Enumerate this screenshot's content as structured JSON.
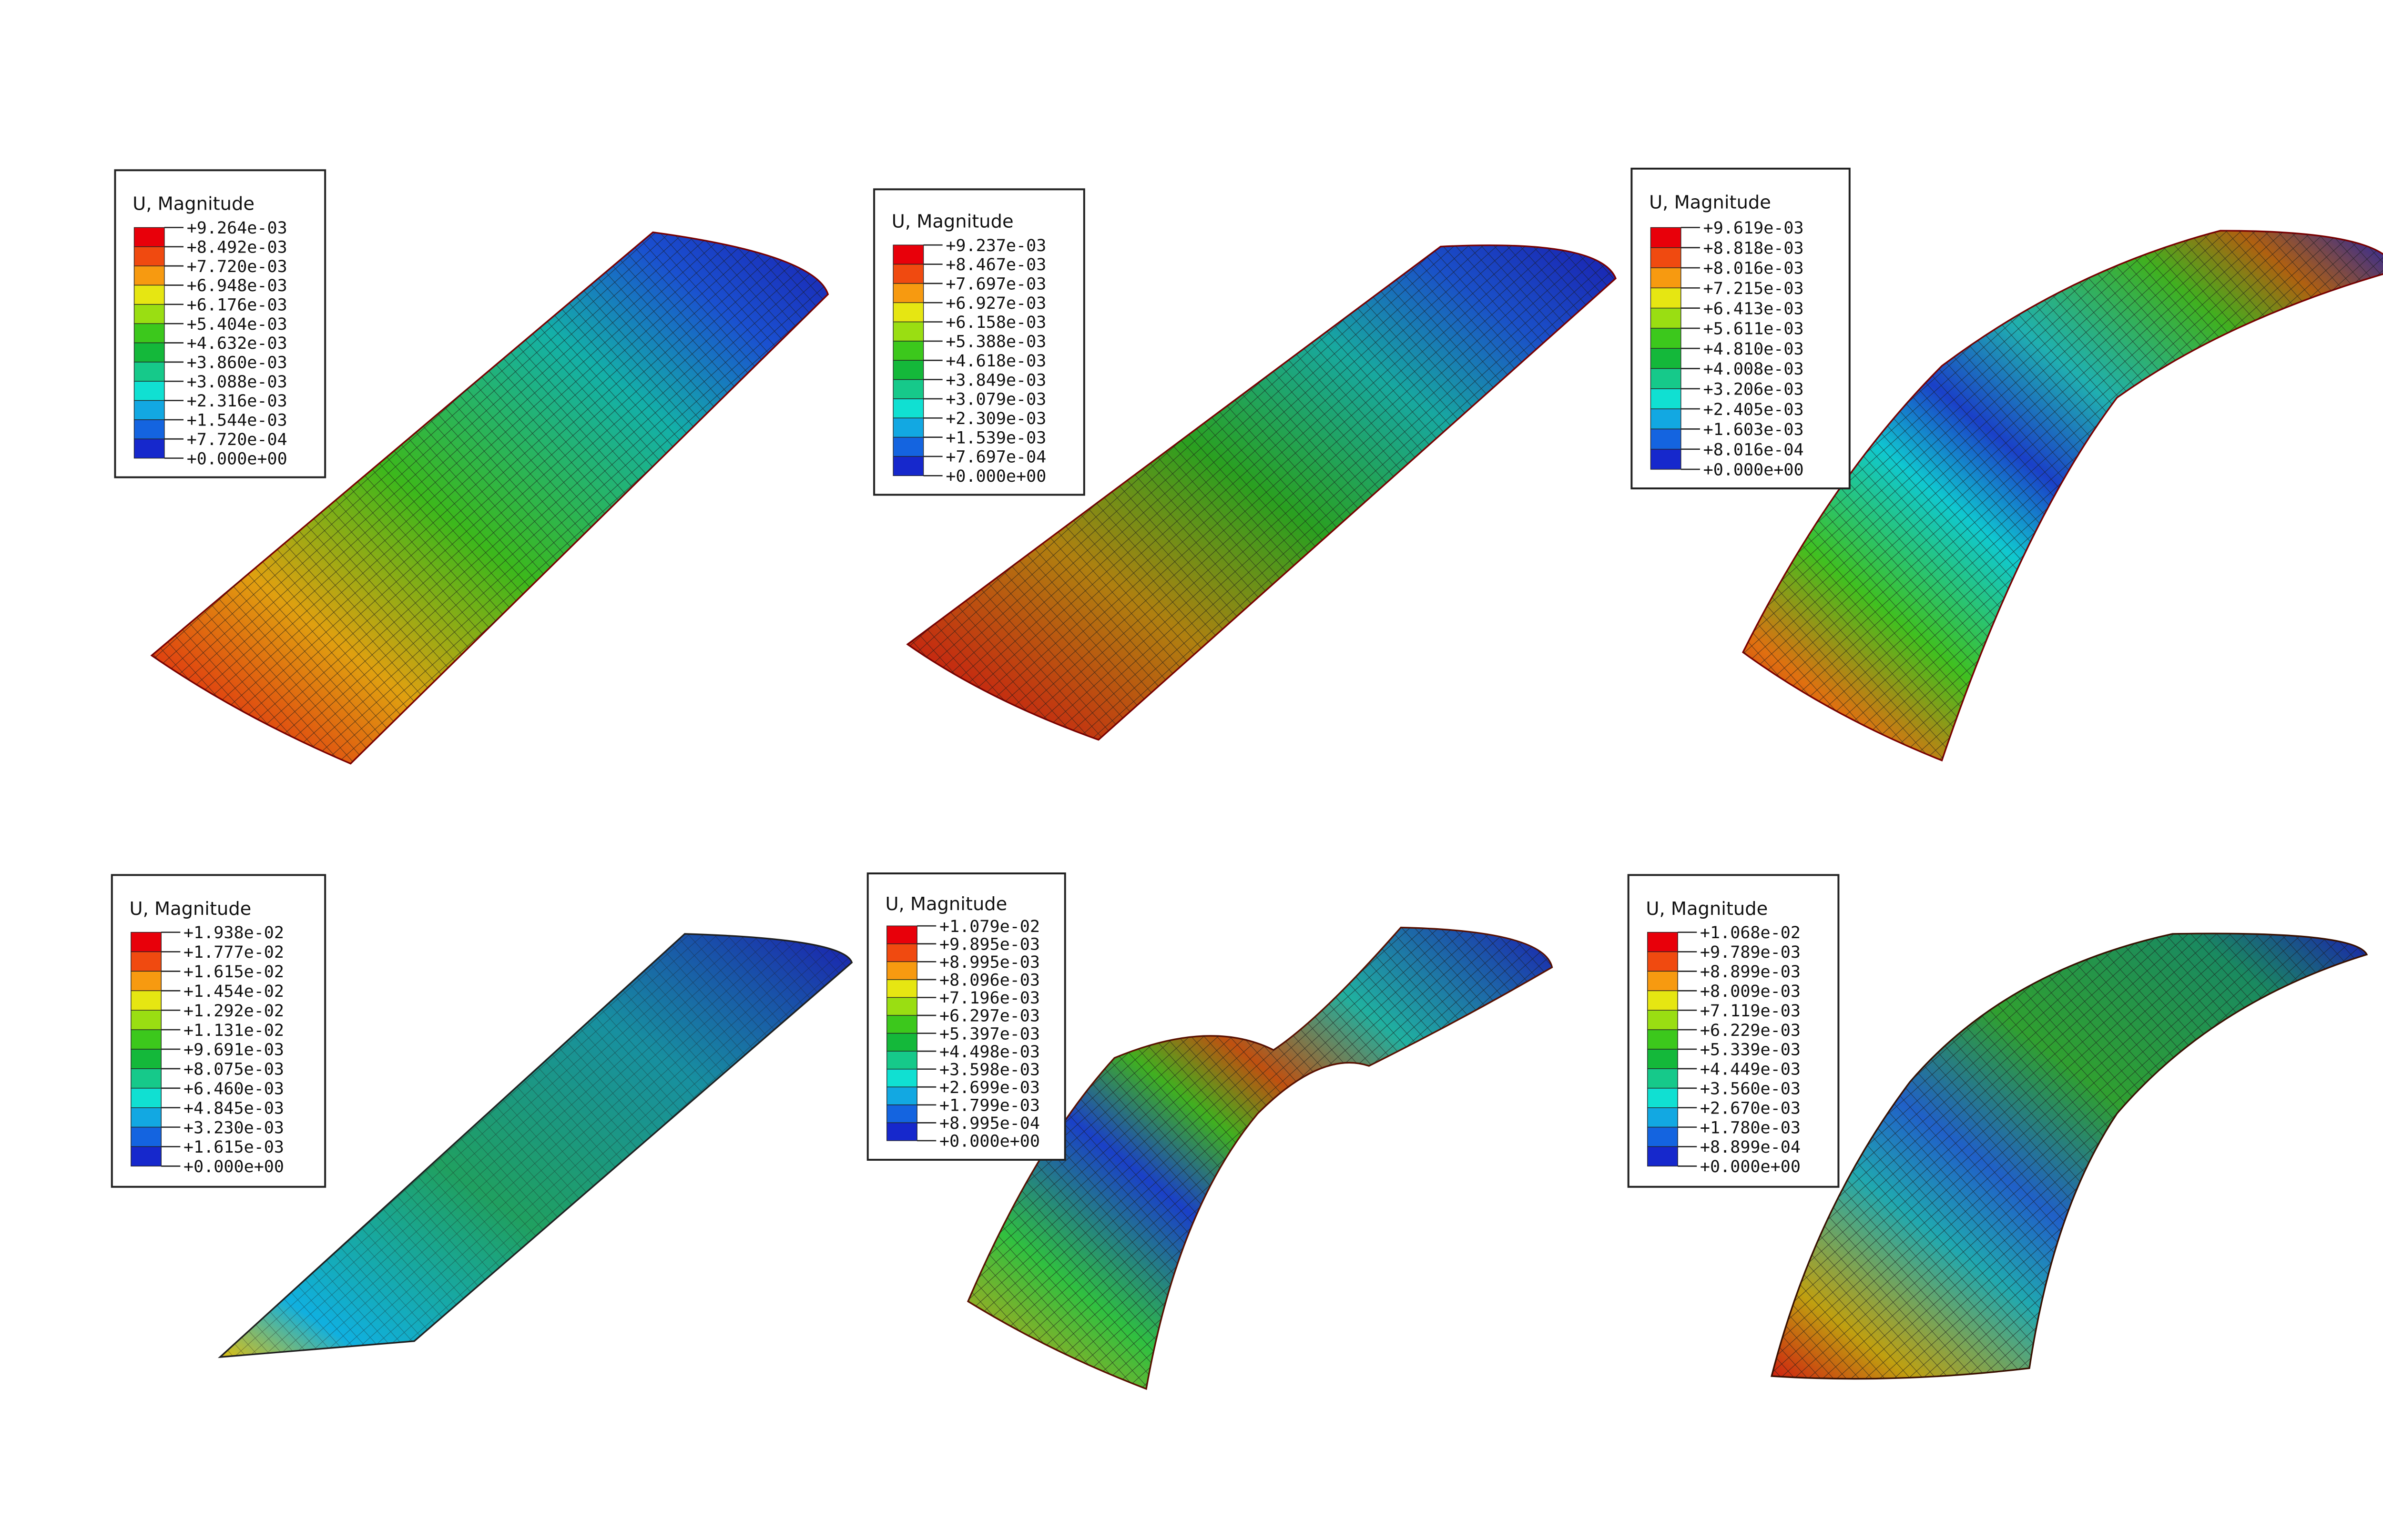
{
  "colors": [
    "#e8000a",
    "#f04a10",
    "#f79a10",
    "#e6e612",
    "#9ade12",
    "#3cc81c",
    "#14b83a",
    "#16c98a",
    "#10e0d2",
    "#12a8e2",
    "#1464e0",
    "#1628cc"
  ],
  "panels": [
    {
      "legend": {
        "title": "U, Magnitude",
        "values": [
          "+9.264e-03",
          "+8.492e-03",
          "+7.720e-03",
          "+6.948e-03",
          "+6.176e-03",
          "+5.404e-03",
          "+4.632e-03",
          "+3.860e-03",
          "+3.088e-03",
          "+2.316e-03",
          "+1.544e-03",
          "+7.720e-04",
          "+0.000e+00"
        ]
      }
    },
    {
      "legend": {
        "title": "U, Magnitude",
        "values": [
          "+9.237e-03",
          "+8.467e-03",
          "+7.697e-03",
          "+6.927e-03",
          "+6.158e-03",
          "+5.388e-03",
          "+4.618e-03",
          "+3.849e-03",
          "+3.079e-03",
          "+2.309e-03",
          "+1.539e-03",
          "+7.697e-04",
          "+0.000e+00"
        ]
      }
    },
    {
      "legend": {
        "title": "U, Magnitude",
        "values": [
          "+9.619e-03",
          "+8.818e-03",
          "+8.016e-03",
          "+7.215e-03",
          "+6.413e-03",
          "+5.611e-03",
          "+4.810e-03",
          "+4.008e-03",
          "+3.206e-03",
          "+2.405e-03",
          "+1.603e-03",
          "+8.016e-04",
          "+0.000e+00"
        ]
      }
    },
    {
      "legend": {
        "title": "U, Magnitude",
        "values": [
          "+1.938e-02",
          "+1.777e-02",
          "+1.615e-02",
          "+1.454e-02",
          "+1.292e-02",
          "+1.131e-02",
          "+9.691e-03",
          "+8.075e-03",
          "+6.460e-03",
          "+4.845e-03",
          "+3.230e-03",
          "+1.615e-03",
          "+0.000e+00"
        ]
      }
    },
    {
      "legend": {
        "title": "U, Magnitude",
        "values": [
          "+1.079e-02",
          "+9.895e-03",
          "+8.995e-03",
          "+8.096e-03",
          "+7.196e-03",
          "+6.297e-03",
          "+5.397e-03",
          "+4.498e-03",
          "+3.598e-03",
          "+2.699e-03",
          "+1.799e-03",
          "+8.995e-04",
          "+0.000e+00"
        ]
      }
    },
    {
      "legend": {
        "title": "U, Magnitude",
        "values": [
          "+1.068e-02",
          "+9.789e-03",
          "+8.899e-03",
          "+8.009e-03",
          "+7.119e-03",
          "+6.229e-03",
          "+5.339e-03",
          "+4.449e-03",
          "+3.560e-03",
          "+2.670e-03",
          "+1.780e-03",
          "+8.899e-04",
          "+0.000e+00"
        ]
      }
    }
  ]
}
